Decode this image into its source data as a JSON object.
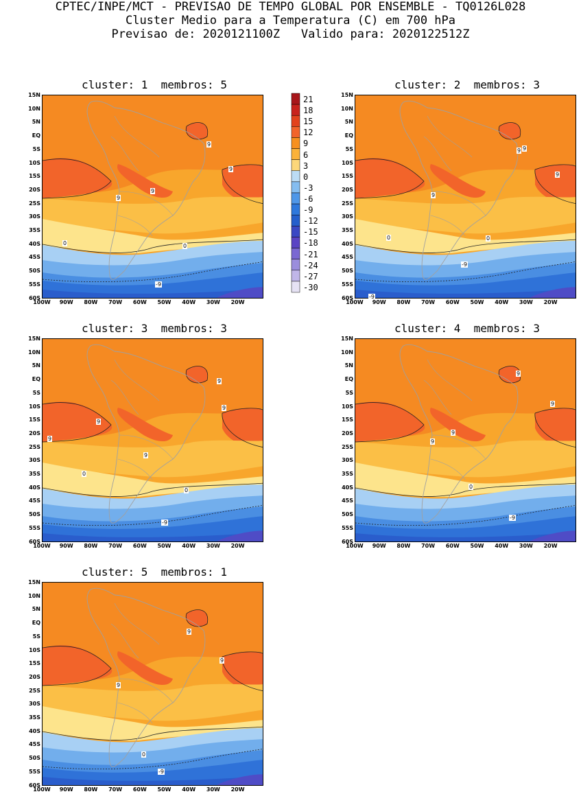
{
  "header": {
    "line1": "CPTEC/INPE/MCT - PREVISAO DE TEMPO GLOBAL POR ENSEMBLE - TQ0126L028",
    "line2": "Cluster Medio para a Temperatura (C) em 700 hPa",
    "line3": "Previsao de: 2020121100Z   Valido para: 2020122512Z"
  },
  "panels": [
    {
      "title": "cluster: 1  membros: 5",
      "contour_labels": [
        "9",
        "9",
        "9",
        "9",
        "0",
        "0",
        "-9"
      ]
    },
    {
      "title": "cluster: 2  membros: 3",
      "contour_labels": [
        "9",
        "9",
        "9",
        "9",
        "0",
        "0",
        "-9",
        "-9"
      ]
    },
    {
      "title": "cluster: 3  membros: 3",
      "contour_labels": [
        "9",
        "9",
        "9",
        "9",
        "9",
        "0",
        "0",
        "-9"
      ]
    },
    {
      "title": "cluster: 4  membros: 3",
      "contour_labels": [
        "9",
        "9",
        "9",
        "9",
        "0",
        "-9"
      ]
    },
    {
      "title": "cluster: 5  membros: 1",
      "contour_labels": [
        "9",
        "9",
        "9",
        "0",
        "-9"
      ]
    }
  ],
  "lat_labels": [
    "15N",
    "10N",
    "5N",
    "EQ",
    "5S",
    "10S",
    "15S",
    "20S",
    "25S",
    "30S",
    "35S",
    "40S",
    "45S",
    "50S",
    "55S",
    "60S"
  ],
  "lon_labels": [
    "100W",
    "90W",
    "80W",
    "70W",
    "60W",
    "50W",
    "40W",
    "30W",
    "20W"
  ],
  "colorbar": {
    "labels": [
      "21",
      "18",
      "15",
      "12",
      "9",
      "6",
      "3",
      "0",
      "-3",
      "-6",
      "-9",
      "-12",
      "-15",
      "-18",
      "-21",
      "-24",
      "-27",
      "-30"
    ],
    "colors": [
      "#a8161a",
      "#c8221c",
      "#e2421c",
      "#f2642a",
      "#f7901e",
      "#fbb23a",
      "#fcd77a",
      "#bcdcf4",
      "#85bdf0",
      "#4f97e8",
      "#2e78dc",
      "#245fcc",
      "#3a48c4",
      "#5a44c4",
      "#7a68d2",
      "#9b8edd",
      "#c0b6e8",
      "#e6e2f4"
    ]
  },
  "band_colors": {
    "c12": "#f2642a",
    "c9": "#f58a22",
    "c6": "#f8a62c",
    "c3": "#fbbf46",
    "c0": "#fde48c",
    "cm3": "#a8d0f4",
    "cm6": "#72aeec",
    "cm9": "#4a8ee2",
    "cm12": "#2f72d8",
    "cm15": "#2a5dcc",
    "cm18": "#4f4cc6"
  }
}
